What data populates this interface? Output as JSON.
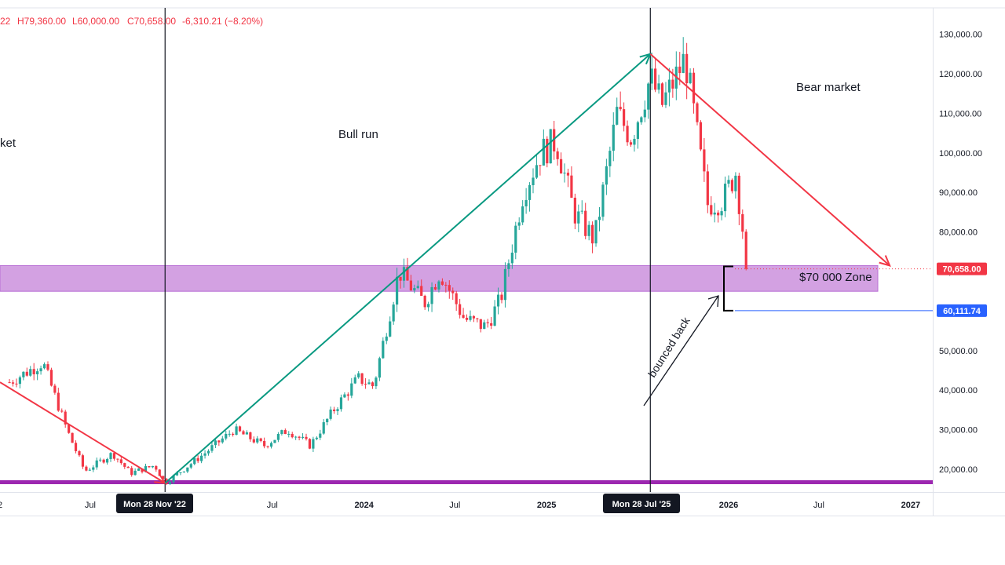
{
  "ohlc_legend": {
    "prefix": "22",
    "high": "H79,360.00",
    "low": "L60,000.00",
    "close": "C70,658.00",
    "change": "-6,310.21 (−8.20%)"
  },
  "annotations": {
    "bear_left": "ket",
    "bull_run": "Bull run",
    "bear_market": "Bear market",
    "zone": "$70 000 Zone",
    "bounced": "bounced back"
  },
  "price_tags": {
    "last": "70,658.00",
    "marker": "60,111.74"
  },
  "vline_tags": [
    "Mon 28 Nov '22",
    "Mon 28 Jul '25"
  ],
  "colors": {
    "up": "#26a69a",
    "down": "#f23645",
    "zone": "#d3a1e2",
    "bottom_band": "#9c27b0",
    "blue": "#2962ff",
    "trend_green": "#089981",
    "trend_red": "#f23645"
  },
  "chart_data": {
    "type": "candlestick",
    "interval": "weekly",
    "y_axis": {
      "range": [
        14000,
        134000
      ],
      "ticks": [
        20000,
        30000,
        40000,
        50000,
        60000,
        70000,
        80000,
        90000,
        100000,
        110000,
        120000,
        130000
      ],
      "tick_labels": [
        "20,000.00",
        "30,000.00",
        "40,000.00",
        "50,000.00",
        "60,000.00",
        "70,000.00",
        "80,000.00",
        "90,000.00",
        "100,000.00",
        "110,000.00",
        "120,000.00",
        "130,000.00"
      ]
    },
    "x_axis": {
      "range": [
        "2022-01-01",
        "2027-03-01"
      ],
      "ticks": [
        {
          "date": "2022-01-01",
          "label": "2"
        },
        {
          "date": "2022-07-01",
          "label": "Jul"
        },
        {
          "date": "2023-07-01",
          "label": "Jul"
        },
        {
          "date": "2024-01-01",
          "label": "2024"
        },
        {
          "date": "2024-07-01",
          "label": "Jul"
        },
        {
          "date": "2025-01-01",
          "label": "2025"
        },
        {
          "date": "2026-01-01",
          "label": "2026"
        },
        {
          "date": "2026-07-01",
          "label": "Jul"
        },
        {
          "date": "2027-01-01",
          "label": "2027"
        }
      ]
    },
    "price_path": [
      {
        "date": "2022-01-20",
        "price": 42000
      },
      {
        "date": "2022-03-28",
        "price": 47000
      },
      {
        "date": "2022-05-15",
        "price": 30000
      },
      {
        "date": "2022-06-20",
        "price": 19500
      },
      {
        "date": "2022-08-15",
        "price": 24000
      },
      {
        "date": "2022-09-20",
        "price": 19000
      },
      {
        "date": "2022-11-07",
        "price": 21000
      },
      {
        "date": "2022-11-28",
        "price": 16500
      },
      {
        "date": "2023-02-15",
        "price": 24000
      },
      {
        "date": "2023-04-15",
        "price": 30000
      },
      {
        "date": "2023-06-15",
        "price": 26000
      },
      {
        "date": "2023-08-01",
        "price": 30000
      },
      {
        "date": "2023-09-15",
        "price": 26000
      },
      {
        "date": "2023-11-01",
        "price": 35000
      },
      {
        "date": "2023-12-20",
        "price": 43000
      },
      {
        "date": "2024-01-20",
        "price": 41000
      },
      {
        "date": "2024-03-11",
        "price": 70000
      },
      {
        "date": "2024-05-01",
        "price": 62000
      },
      {
        "date": "2024-06-01",
        "price": 70000
      },
      {
        "date": "2024-07-20",
        "price": 58000
      },
      {
        "date": "2024-09-01",
        "price": 56000
      },
      {
        "date": "2024-10-01",
        "price": 63000
      },
      {
        "date": "2024-11-15",
        "price": 90000
      },
      {
        "date": "2024-12-20",
        "price": 100000
      },
      {
        "date": "2025-01-20",
        "price": 103000
      },
      {
        "date": "2025-02-25",
        "price": 85000
      },
      {
        "date": "2025-04-07",
        "price": 78000
      },
      {
        "date": "2025-05-22",
        "price": 110000
      },
      {
        "date": "2025-06-20",
        "price": 104000
      },
      {
        "date": "2025-07-28",
        "price": 119000
      },
      {
        "date": "2025-08-20",
        "price": 112000
      },
      {
        "date": "2025-10-06",
        "price": 124000
      },
      {
        "date": "2025-11-20",
        "price": 87000
      },
      {
        "date": "2025-12-20",
        "price": 88000
      },
      {
        "date": "2026-01-15",
        "price": 95000
      },
      {
        "date": "2026-02-01",
        "price": 78000
      },
      {
        "date": "2026-02-10",
        "price": 70658
      }
    ],
    "zone": {
      "from": 65000,
      "to": 71500
    },
    "marker_price": 60111.74,
    "last_price": 70658,
    "vlines": [
      "2022-11-28",
      "2025-07-28"
    ],
    "trendlines": [
      {
        "color": "red",
        "from": {
          "date": "2022-01-01",
          "price": 42000
        },
        "to": {
          "date": "2022-11-28",
          "price": 16500
        }
      },
      {
        "color": "green",
        "from": {
          "date": "2022-11-28",
          "price": 16500
        },
        "to": {
          "date": "2025-07-28",
          "price": 125000
        }
      },
      {
        "color": "red",
        "from": {
          "date": "2025-07-28",
          "price": 125000
        },
        "to": {
          "date": "2026-11-20",
          "price": 71500
        }
      }
    ]
  }
}
